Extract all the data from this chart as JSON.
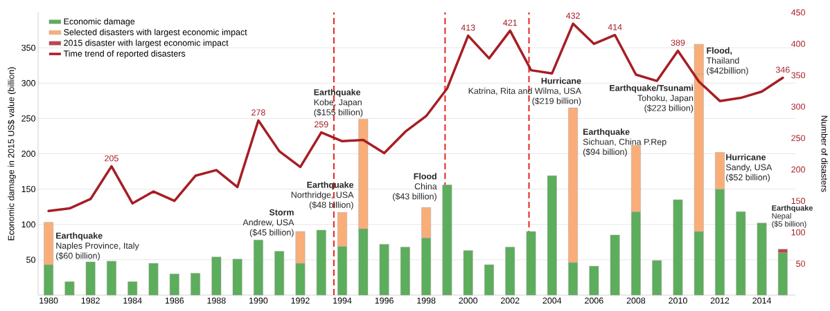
{
  "chart_data": {
    "type": "bar",
    "stacked": true,
    "ylabel": "Economic damage in 2015 US$ value (billion)",
    "y2label": "Number of disasters",
    "x": [
      1980,
      1981,
      1982,
      1983,
      1984,
      1985,
      1986,
      1987,
      1988,
      1989,
      1990,
      1991,
      1992,
      1993,
      1994,
      1995,
      1996,
      1997,
      1998,
      1999,
      2000,
      2001,
      2002,
      2003,
      2004,
      2005,
      2006,
      2007,
      2008,
      2009,
      2010,
      2011,
      2012,
      2013,
      2014,
      2015
    ],
    "xlim": [
      1979.5,
      2015.6
    ],
    "xticks": [
      1980,
      1982,
      1984,
      1986,
      1988,
      1990,
      1992,
      1994,
      1996,
      1998,
      2000,
      2002,
      2004,
      2006,
      2008,
      2010,
      2012,
      2014
    ],
    "ylim": [
      0,
      400
    ],
    "yticks": [
      50,
      100,
      150,
      200,
      250,
      300,
      350
    ],
    "y2lim": [
      0,
      450
    ],
    "y2ticks": [
      50,
      100,
      150,
      200,
      250,
      300,
      350,
      400,
      450
    ],
    "grid": "y",
    "legend": "top left",
    "series": [
      {
        "name": "Economic damage",
        "color": "#5cad5c",
        "values": [
          43,
          19,
          47,
          48,
          19,
          45,
          30,
          31,
          54,
          51,
          78,
          62,
          45,
          92,
          69,
          94,
          72,
          68,
          81,
          156,
          63,
          43,
          68,
          90,
          169,
          46,
          41,
          85,
          118,
          49,
          135,
          90,
          150,
          118,
          102,
          60
        ]
      },
      {
        "name": "Selected disasters with largest economic impact",
        "color": "#f9ae7a",
        "values": [
          60,
          null,
          null,
          null,
          null,
          null,
          null,
          null,
          null,
          null,
          null,
          null,
          45,
          null,
          48,
          155,
          null,
          null,
          43,
          null,
          null,
          null,
          null,
          null,
          null,
          219,
          null,
          null,
          94,
          null,
          null,
          223,
          52,
          null,
          null,
          null
        ]
      },
      {
        "color": "#f9ae7a",
        "values": [
          null,
          null,
          null,
          null,
          null,
          null,
          null,
          null,
          null,
          null,
          null,
          null,
          null,
          null,
          null,
          null,
          null,
          null,
          null,
          null,
          null,
          null,
          null,
          null,
          null,
          null,
          null,
          null,
          null,
          null,
          null,
          42,
          null,
          null,
          null,
          null
        ]
      },
      {
        "name": "2015 disaster with largest economic impact",
        "color": "#b9474c",
        "values": [
          null,
          null,
          null,
          null,
          null,
          null,
          null,
          null,
          null,
          null,
          null,
          null,
          null,
          null,
          null,
          null,
          null,
          null,
          null,
          null,
          null,
          null,
          null,
          null,
          null,
          null,
          null,
          null,
          null,
          null,
          null,
          null,
          null,
          null,
          null,
          5
        ]
      },
      {
        "name": "Time trend of reported disasters",
        "type": "line",
        "axis": "y2",
        "color": "#a61e24",
        "values": [
          134,
          138,
          153,
          205,
          146,
          165,
          150,
          190,
          199,
          172,
          278,
          229,
          204,
          259,
          245,
          247,
          226,
          260,
          285,
          329,
          413,
          377,
          421,
          358,
          353,
          432,
          400,
          414,
          351,
          341,
          389,
          340,
          309,
          314,
          324,
          346
        ],
        "value_labels": [
          null,
          null,
          null,
          "205",
          null,
          null,
          null,
          null,
          null,
          null,
          "278",
          null,
          null,
          "259",
          null,
          null,
          null,
          null,
          null,
          null,
          "413",
          null,
          "421",
          null,
          null,
          "432",
          null,
          "414",
          null,
          null,
          "389",
          null,
          null,
          null,
          null,
          "346"
        ]
      }
    ],
    "ref_lines": [
      {
        "axis": "x",
        "value": 1993.6,
        "color": "#e8231c",
        "line_style": "dashed"
      },
      {
        "axis": "x",
        "value": 1998.9,
        "color": "#e8231c",
        "line_style": "dashed"
      },
      {
        "axis": "x",
        "value": 2002.9,
        "color": "#e8231c",
        "line_style": "dashed"
      }
    ],
    "annotations": [
      "**Earthquake**",
      "Naples Province, Italy",
      "($60 billion)",
      "**Storm**",
      "Andrew, USA",
      "($45 billion)",
      "**Earthquake**",
      "Northridge, USA",
      "($48 billion)",
      "**Earthquake**",
      "Kobe, Japan",
      "($155 billion)",
      "**Flood**",
      "China",
      "($43 billion)",
      "**Hurricane**",
      "Katrina, Rita and Wilma, USA",
      "($219 billion)",
      "**Earthquake**",
      "Sichuan, China P.Rep",
      "($94 billion)",
      "**Earthquake/Tsunami**",
      "Tohoku, Japan",
      "($223 billion)",
      "**Flood,**",
      "Thailand",
      "($42billion)",
      "**Hurricane**",
      "Sandy, USA",
      "($52 billion)",
      "**Earthquake**",
      "Nepal",
      "($5 billion)"
    ]
  }
}
